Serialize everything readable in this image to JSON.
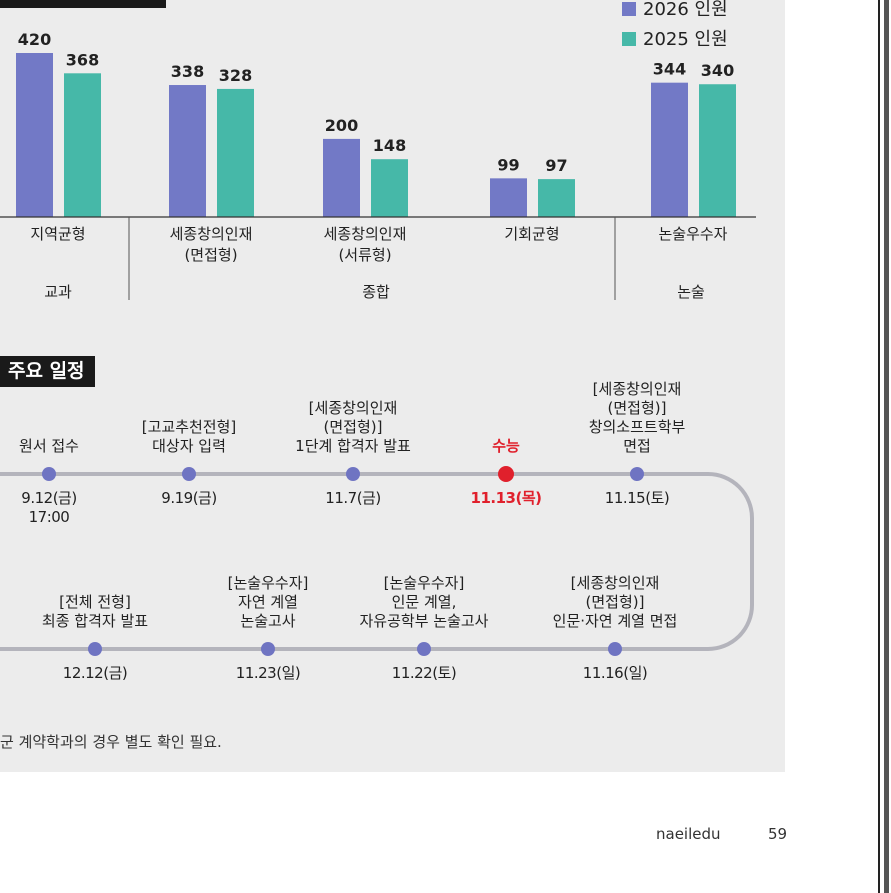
{
  "chart_data": {
    "type": "bar",
    "title": "",
    "categories": [
      "지역균형",
      "세종창의인재\n(면접형)",
      "세종창의인재\n(서류형)",
      "기회균형",
      "논술우수자"
    ],
    "groups": [
      {
        "label": "교과",
        "categories": [
          "지역균형"
        ]
      },
      {
        "label": "종합",
        "categories": [
          "세종창의인재\n(면접형)",
          "세종창의인재\n(서류형)",
          "기회균형"
        ]
      },
      {
        "label": "논술",
        "categories": [
          "논술우수자"
        ]
      }
    ],
    "series": [
      {
        "name": "2026 인원",
        "values": [
          420,
          338,
          200,
          99,
          344
        ],
        "color": "#7279c6"
      },
      {
        "name": "2025 인원",
        "values": [
          368,
          328,
          148,
          97,
          340
        ],
        "color": "#46b8a8"
      }
    ],
    "ylim": [
      0,
      440
    ],
    "legend": "top-right",
    "grid": false
  },
  "schedule": {
    "title": "주요 일정",
    "events": [
      {
        "label": "원서 접수",
        "date": "9.12(금)\n17:00",
        "highlight": false,
        "row": "top"
      },
      {
        "label": "[고교추천전형]\n대상자 입력",
        "date": "9.19(금)",
        "highlight": false,
        "row": "top"
      },
      {
        "label": "[세종창의인재\n(면접형)]\n1단계 합격자 발표",
        "date": "11.7(금)",
        "highlight": false,
        "row": "top"
      },
      {
        "label": "수능",
        "date": "11.13(목)",
        "highlight": true,
        "row": "top"
      },
      {
        "label": "[세종창의인재\n(면접형)]\n창의소프트학부\n면접",
        "date": "11.15(토)",
        "highlight": false,
        "row": "top"
      },
      {
        "label": "[전체 전형]\n최종 합격자 발표",
        "date": "12.12(금)",
        "highlight": false,
        "row": "bottom"
      },
      {
        "label": "[논술우수자]\n자연 계열\n논술고사",
        "date": "11.23(일)",
        "highlight": false,
        "row": "bottom"
      },
      {
        "label": "[논술우수자]\n인문 계열,\n자유공학부 논술고사",
        "date": "11.22(토)",
        "highlight": false,
        "row": "bottom"
      },
      {
        "label": "[세종창의인재\n(면접형)]\n인문·자연 계열 면접",
        "date": "11.16(일)",
        "highlight": false,
        "row": "bottom"
      }
    ],
    "dot_color": "#6f74c2",
    "highlight_color": "#e0202c",
    "line_color": "#b4b4bc"
  },
  "footnote": "군 계약학과의 경우 별도 확인 필요.",
  "footer": {
    "site": "naeiledu",
    "page": "59"
  }
}
